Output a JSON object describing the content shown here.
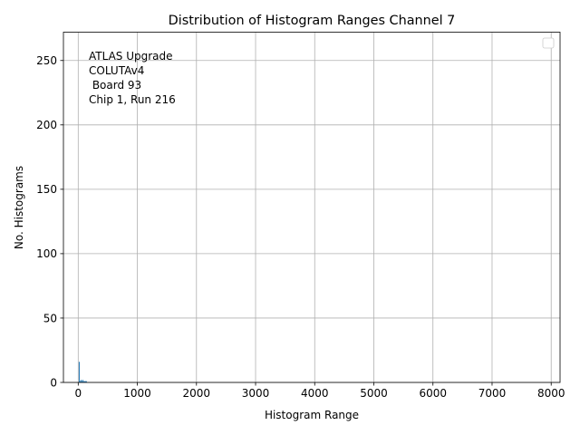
{
  "chart_data": {
    "type": "bar",
    "title": "Distribution of Histogram Ranges Channel 7",
    "xlabel": "Histogram Range",
    "ylabel": "No. Histograms",
    "xlim": [
      -250,
      8150
    ],
    "ylim": [
      0,
      272
    ],
    "xticks": [
      0,
      1000,
      2000,
      3000,
      4000,
      5000,
      6000,
      7000,
      8000
    ],
    "yticks": [
      0,
      50,
      100,
      150,
      200,
      250
    ],
    "grid": true,
    "legend": "top-right",
    "annotation": [
      "ATLAS Upgrade",
      "COLUTAv4",
      " Board 93",
      "Chip 1, Run 216"
    ],
    "bar_color": "#1f77b4",
    "bins": [
      {
        "x0": 10,
        "x1": 25,
        "count": 16
      },
      {
        "x0": 25,
        "x1": 40,
        "count": 1
      },
      {
        "x0": 40,
        "x1": 55,
        "count": 2
      },
      {
        "x0": 55,
        "x1": 70,
        "count": 1
      },
      {
        "x0": 70,
        "x1": 85,
        "count": 2
      },
      {
        "x0": 85,
        "x1": 100,
        "count": 1
      },
      {
        "x0": 100,
        "x1": 115,
        "count": 1
      },
      {
        "x0": 115,
        "x1": 130,
        "count": 1
      },
      {
        "x0": 130,
        "x1": 145,
        "count": 1
      }
    ]
  }
}
